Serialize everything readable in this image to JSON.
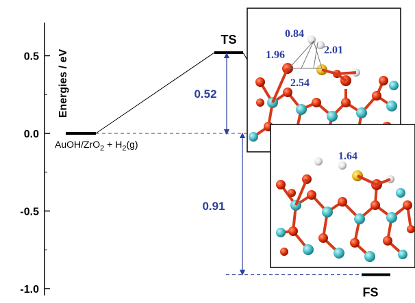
{
  "chart_data": {
    "type": "energy-profile",
    "ylabel": "Energies / eV",
    "ylim": [
      -1.05,
      0.7
    ],
    "yticks": [
      0.5,
      0.0,
      -0.5,
      -1.0
    ],
    "ytick_labels": [
      "0.5",
      "0.0",
      "-0.5",
      "-1.0"
    ],
    "states": [
      {
        "label": "AuOH/ZrO",
        "sub1": "2",
        "mid": " + H",
        "sub2": "2",
        "tail": "(g)",
        "energy": 0.0
      },
      {
        "label": "TS",
        "energy": 0.52
      },
      {
        "label": "FS",
        "energy": -0.91
      }
    ],
    "annotations": {
      "barrier_label": "0.52",
      "barrier_value": 0.52,
      "reaction_label": "0.91",
      "reaction_value": -0.91
    },
    "insets": {
      "ts_distances": [
        "0.84",
        "1.96",
        "2.01",
        "2.54"
      ],
      "fs_distances": [
        "1.64"
      ]
    }
  }
}
